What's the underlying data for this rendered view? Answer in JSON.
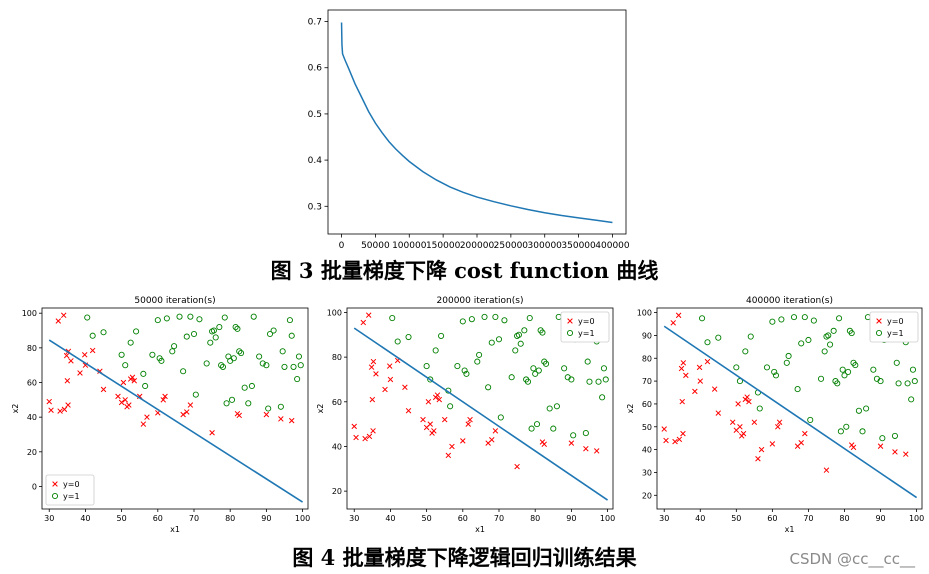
{
  "figure3": {
    "caption": "图  3  批量梯度下降 cost function 曲线",
    "chart_data": {
      "type": "line",
      "title": "",
      "xlabel": "",
      "ylabel": "",
      "xlim": [
        -20000,
        420000
      ],
      "ylim": [
        0.24,
        0.725
      ],
      "xticks": [
        "0",
        "50000",
        "100000",
        "150000",
        "200000",
        "250000",
        "300000",
        "350000",
        "400000"
      ],
      "yticks": [
        "0.3",
        "0.4",
        "0.5",
        "0.6",
        "0.7"
      ],
      "series": [
        {
          "name": "cost",
          "color": "#1f77b4",
          "x": [
            0,
            600,
            1500,
            5000,
            10000,
            20000,
            30000,
            40000,
            50000,
            60000,
            70000,
            80000,
            90000,
            100000,
            120000,
            140000,
            160000,
            180000,
            200000,
            225000,
            250000,
            275000,
            300000,
            325000,
            350000,
            375000,
            400000
          ],
          "y": [
            0.698,
            0.65,
            0.63,
            0.617,
            0.6,
            0.565,
            0.535,
            0.505,
            0.48,
            0.459,
            0.44,
            0.424,
            0.41,
            0.397,
            0.375,
            0.357,
            0.342,
            0.33,
            0.32,
            0.31,
            0.301,
            0.293,
            0.286,
            0.28,
            0.275,
            0.27,
            0.265
          ]
        }
      ]
    }
  },
  "figure4": {
    "caption": "图  4  批量梯度下降逻辑回归训练结果",
    "dataset": {
      "y0": [
        [
          30,
          49
        ],
        [
          30.5,
          44
        ],
        [
          32.5,
          95.5
        ],
        [
          33,
          43.5
        ],
        [
          34,
          98.8
        ],
        [
          34.2,
          44.5
        ],
        [
          34.8,
          75.5
        ],
        [
          35,
          61
        ],
        [
          35.2,
          47
        ],
        [
          35.3,
          78
        ],
        [
          36,
          72.5
        ],
        [
          38.5,
          65.5
        ],
        [
          39.8,
          76
        ],
        [
          40,
          70
        ],
        [
          42,
          78.5
        ],
        [
          44,
          66.5
        ],
        [
          45,
          56
        ],
        [
          49,
          52
        ],
        [
          50,
          48.5
        ],
        [
          50.5,
          60
        ],
        [
          51,
          50
        ],
        [
          51.5,
          46
        ],
        [
          52,
          47
        ],
        [
          52.5,
          62
        ],
        [
          53,
          63
        ],
        [
          53.5,
          61
        ],
        [
          55,
          52
        ],
        [
          56,
          36
        ],
        [
          57,
          40
        ],
        [
          60,
          42.5
        ],
        [
          61.5,
          50
        ],
        [
          62,
          52
        ],
        [
          67,
          41.5
        ],
        [
          68,
          43
        ],
        [
          69,
          47
        ],
        [
          75,
          31
        ],
        [
          82,
          42
        ],
        [
          82.5,
          41
        ],
        [
          90,
          41.5
        ],
        [
          94,
          39
        ],
        [
          97,
          38
        ]
      ],
      "y1": [
        [
          40.5,
          97.5
        ],
        [
          42,
          87
        ],
        [
          45,
          89
        ],
        [
          50,
          76
        ],
        [
          51,
          70
        ],
        [
          52.5,
          83
        ],
        [
          54,
          89.5
        ],
        [
          56,
          65
        ],
        [
          56.5,
          58
        ],
        [
          58.5,
          76
        ],
        [
          60,
          96
        ],
        [
          60.5,
          74
        ],
        [
          61,
          72.5
        ],
        [
          62.5,
          97
        ],
        [
          64,
          78
        ],
        [
          64.5,
          81
        ],
        [
          66,
          98
        ],
        [
          67,
          66.5
        ],
        [
          68,
          86.5
        ],
        [
          69,
          98
        ],
        [
          70,
          88
        ],
        [
          70.5,
          53
        ],
        [
          71.5,
          96.5
        ],
        [
          73.5,
          71
        ],
        [
          74.5,
          83
        ],
        [
          75,
          89.5
        ],
        [
          75.5,
          90
        ],
        [
          76,
          86
        ],
        [
          77,
          92
        ],
        [
          77.5,
          70
        ],
        [
          78,
          69
        ],
        [
          78.5,
          97.5
        ],
        [
          79,
          48
        ],
        [
          79.5,
          75
        ],
        [
          80,
          72.5
        ],
        [
          80.5,
          50
        ],
        [
          81,
          74
        ],
        [
          81.5,
          92
        ],
        [
          82,
          91
        ],
        [
          82.5,
          78
        ],
        [
          83,
          77
        ],
        [
          84,
          57
        ],
        [
          85,
          48
        ],
        [
          86,
          58
        ],
        [
          86.5,
          98
        ],
        [
          88,
          75
        ],
        [
          89,
          71
        ],
        [
          90,
          70
        ],
        [
          90.5,
          45
        ],
        [
          91,
          88
        ],
        [
          92,
          90
        ],
        [
          94,
          46
        ],
        [
          94.5,
          78
        ],
        [
          95,
          69
        ],
        [
          96.5,
          96
        ],
        [
          97,
          87
        ],
        [
          97.5,
          69
        ],
        [
          98.5,
          62
        ],
        [
          99,
          75
        ],
        [
          99.5,
          70
        ]
      ]
    },
    "charts": [
      {
        "chart_data": {
          "type": "scatter",
          "title": "50000 iteration(s)",
          "xlabel": "x1",
          "ylabel": "x2",
          "xlim": [
            28,
            101.5
          ],
          "ylim": [
            -13,
            103
          ],
          "xticks": [
            "30",
            "40",
            "50",
            "60",
            "70",
            "80",
            "90",
            "100"
          ],
          "yticks": [
            "0",
            "20",
            "40",
            "60",
            "80",
            "100"
          ],
          "legend_position": "lower-left",
          "legend": [
            "y=0",
            "y=1"
          ],
          "boundary": {
            "x": [
              30,
              100
            ],
            "y": [
              84.5,
              -9
            ]
          },
          "marker_colors": {
            "y0": "#ff0000",
            "y1": "#008000"
          },
          "line_color": "#1f77b4"
        }
      },
      {
        "chart_data": {
          "type": "scatter",
          "title": "200000 iteration(s)",
          "xlabel": "x1",
          "ylabel": "x2",
          "xlim": [
            28,
            101.5
          ],
          "ylim": [
            12,
            102
          ],
          "xticks": [
            "30",
            "40",
            "50",
            "60",
            "70",
            "80",
            "90",
            "100"
          ],
          "yticks": [
            "20",
            "40",
            "60",
            "80",
            "100"
          ],
          "legend_position": "upper-right",
          "legend": [
            "y=0",
            "y=1"
          ],
          "boundary": {
            "x": [
              30,
              100
            ],
            "y": [
              93,
              16
            ]
          },
          "marker_colors": {
            "y0": "#ff0000",
            "y1": "#008000"
          },
          "line_color": "#1f77b4"
        }
      },
      {
        "chart_data": {
          "type": "scatter",
          "title": "400000 iteration(s)",
          "xlabel": "x1",
          "ylabel": "x2",
          "xlim": [
            28,
            101.5
          ],
          "ylim": [
            14,
            102
          ],
          "xticks": [
            "30",
            "40",
            "50",
            "60",
            "70",
            "80",
            "90",
            "100"
          ],
          "yticks": [
            "20",
            "30",
            "40",
            "50",
            "60",
            "70",
            "80",
            "90",
            "100"
          ],
          "legend_position": "upper-right",
          "legend": [
            "y=0",
            "y=1"
          ],
          "boundary": {
            "x": [
              30,
              100
            ],
            "y": [
              94,
              19
            ]
          },
          "marker_colors": {
            "y0": "#ff0000",
            "y1": "#008000"
          },
          "line_color": "#1f77b4"
        }
      }
    ]
  },
  "watermark": "CSDN @cc__cc__"
}
